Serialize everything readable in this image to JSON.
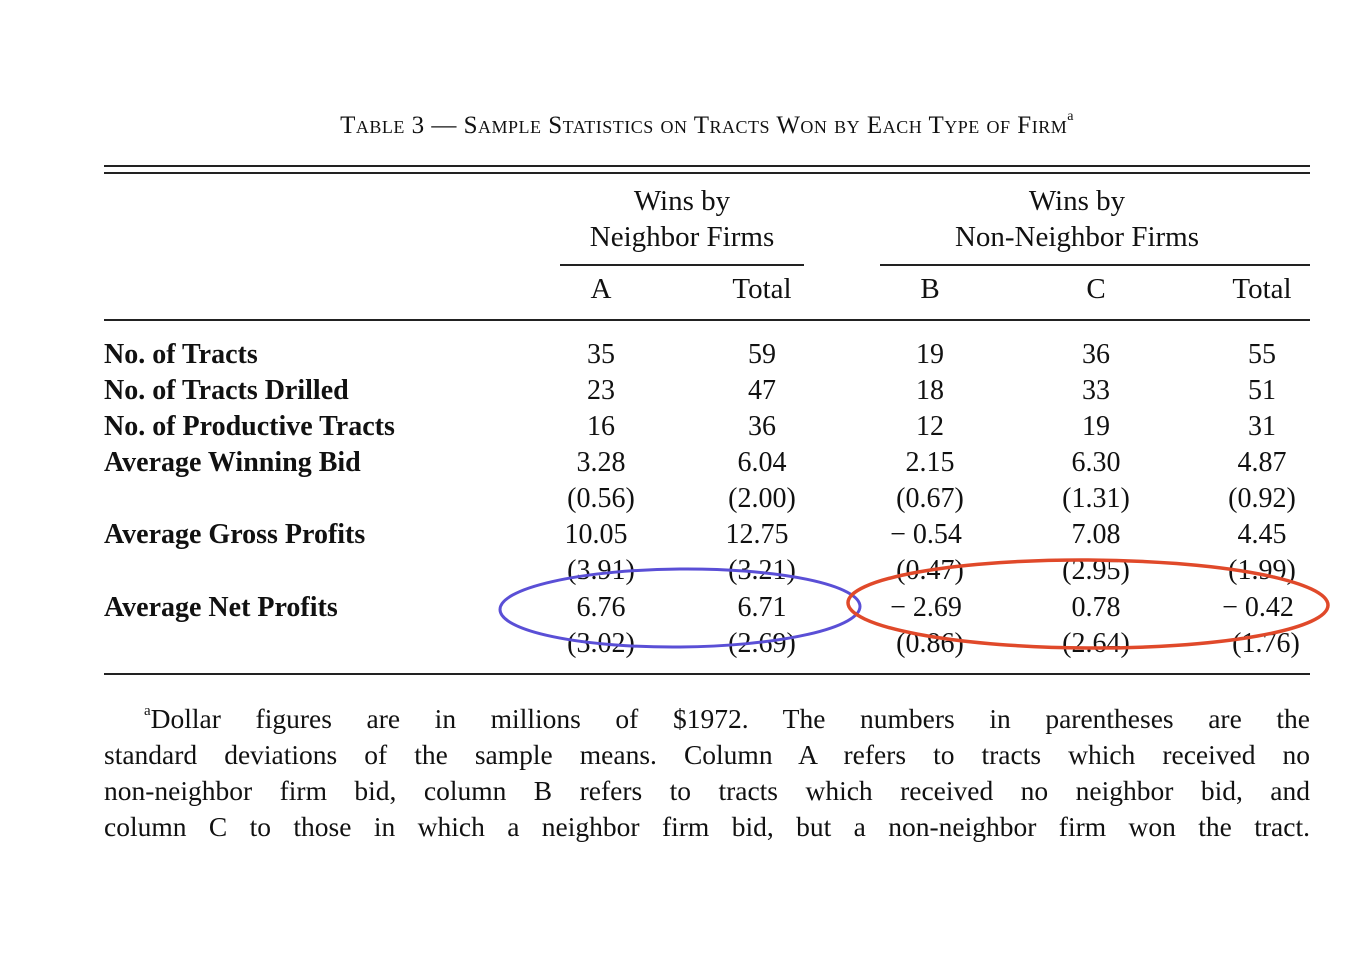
{
  "table": {
    "caption": "Table 3 — Sample Statistics on Tracts Won by Each Type of Firm",
    "caption_mark": "a",
    "groups": [
      {
        "line1": "Wins by",
        "line2": "Neighbor Firms"
      },
      {
        "line1": "Wins by",
        "line2": "Non-Neighbor Firms"
      }
    ],
    "columns": [
      "A",
      "Total",
      "B",
      "C",
      "Total"
    ],
    "rows": [
      {
        "label": "No. of Tracts",
        "values": [
          "35",
          "59",
          "19",
          "36",
          "55"
        ]
      },
      {
        "label": "No. of Tracts Drilled",
        "values": [
          "23",
          "47",
          "18",
          "33",
          "51"
        ]
      },
      {
        "label": "No. of Productive Tracts",
        "values": [
          "16",
          "36",
          "12",
          "19",
          "31"
        ]
      },
      {
        "label": "Average Winning Bid",
        "values": [
          "3.28",
          "6.04",
          "2.15",
          "6.30",
          "4.87"
        ],
        "sd": [
          "(0.56)",
          "(2.00)",
          "(0.67)",
          "(1.31)",
          "(0.92)"
        ]
      },
      {
        "label": "Average Gross Profits",
        "values": [
          "10.05",
          "12.75",
          "− 0.54",
          "7.08",
          "4.45"
        ],
        "sd": [
          "(3.91)",
          "(3.21)",
          "(0.47)",
          "(2.95)",
          "(1.99)"
        ]
      },
      {
        "label": "Average Net Profits",
        "values": [
          "6.76",
          "6.71",
          "− 2.69",
          "0.78",
          "− 0.42"
        ],
        "sd": [
          "(3.02)",
          "(2.69)",
          "(0.86)",
          "(2.64)",
          "(1.76)"
        ]
      }
    ],
    "footnote_mark": "a",
    "footnote_lines": [
      "Dollar figures are in millions of $1972. The numbers in parentheses are the",
      "standard deviations of the sample means. Column A refers to tracts which received no",
      "non-neighbor firm bid, column B refers to tracts which received no neighbor bid, and",
      "column C to those in which a neighbor firm bid, but a non-neighbor firm won the tract."
    ]
  },
  "annotations": {
    "neighbor_ellipse_color": "#5a4fd6",
    "nonneighbor_ellipse_color": "#e0492a"
  }
}
